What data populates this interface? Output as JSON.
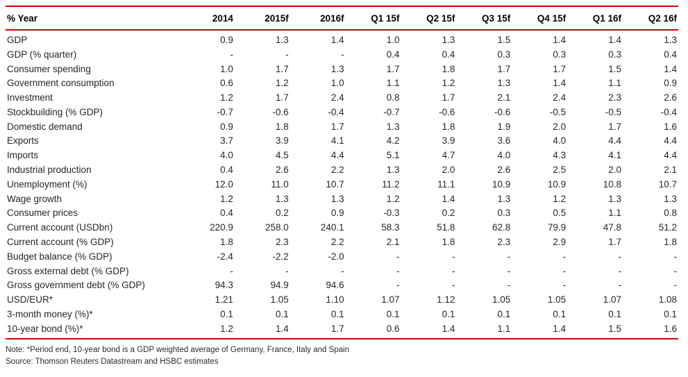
{
  "colors": {
    "rule_red": "#d40000"
  },
  "table": {
    "columns": [
      "% Year",
      "2014",
      "2015f",
      "2016f",
      "Q1 15f",
      "Q2 15f",
      "Q3 15f",
      "Q4 15f",
      "Q1 16f",
      "Q2 16f"
    ],
    "rows": [
      {
        "label": "GDP",
        "values": [
          "0.9",
          "1.3",
          "1.4",
          "1.0",
          "1.3",
          "1.5",
          "1.4",
          "1.4",
          "1.3"
        ]
      },
      {
        "label": "GDP (% quarter)",
        "values": [
          "-",
          "-",
          "-",
          "0.4",
          "0.4",
          "0.3",
          "0.3",
          "0.3",
          "0.4"
        ]
      },
      {
        "label": "Consumer spending",
        "values": [
          "1.0",
          "1.7",
          "1.3",
          "1.7",
          "1.8",
          "1.7",
          "1.7",
          "1.5",
          "1.4"
        ]
      },
      {
        "label": "Government consumption",
        "values": [
          "0.6",
          "1.2",
          "1.0",
          "1.1",
          "1.2",
          "1.3",
          "1.4",
          "1.1",
          "0.9"
        ]
      },
      {
        "label": "Investment",
        "values": [
          "1.2",
          "1.7",
          "2.4",
          "0.8",
          "1.7",
          "2.1",
          "2.4",
          "2.3",
          "2.6"
        ]
      },
      {
        "label": "Stockbuilding (% GDP)",
        "values": [
          "-0.7",
          "-0.6",
          "-0.4",
          "-0.7",
          "-0.6",
          "-0.6",
          "-0.5",
          "-0.5",
          "-0.4"
        ]
      },
      {
        "label": "Domestic demand",
        "values": [
          "0.9",
          "1.8",
          "1.7",
          "1.3",
          "1.8",
          "1.9",
          "2.0",
          "1.7",
          "1.6"
        ]
      },
      {
        "label": "Exports",
        "values": [
          "3.7",
          "3.9",
          "4.1",
          "4.2",
          "3.9",
          "3.6",
          "4.0",
          "4.4",
          "4.4"
        ]
      },
      {
        "label": "Imports",
        "values": [
          "4.0",
          "4.5",
          "4.4",
          "5.1",
          "4.7",
          "4.0",
          "4.3",
          "4.1",
          "4.4"
        ]
      },
      {
        "label": "Industrial production",
        "values": [
          "0.4",
          "2.6",
          "2.2",
          "1.3",
          "2.0",
          "2.6",
          "2.5",
          "2.0",
          "2.1"
        ]
      },
      {
        "label": "Unemployment (%)",
        "values": [
          "12.0",
          "11.0",
          "10.7",
          "11.2",
          "11.1",
          "10.9",
          "10.9",
          "10.8",
          "10.7"
        ]
      },
      {
        "label": "Wage growth",
        "values": [
          "1.2",
          "1.3",
          "1.3",
          "1.2",
          "1.4",
          "1.3",
          "1.2",
          "1.3",
          "1.3"
        ]
      },
      {
        "label": "Consumer prices",
        "values": [
          "0.4",
          "0.2",
          "0.9",
          "-0.3",
          "0.2",
          "0.3",
          "0.5",
          "1.1",
          "0.8"
        ]
      },
      {
        "label": "Current account (USDbn)",
        "values": [
          "220.9",
          "258.0",
          "240.1",
          "58.3",
          "51.8",
          "62.8",
          "79.9",
          "47.8",
          "51.2"
        ]
      },
      {
        "label": "Current account (% GDP)",
        "values": [
          "1.8",
          "2.3",
          "2.2",
          "2.1",
          "1.8",
          "2.3",
          "2.9",
          "1.7",
          "1.8"
        ]
      },
      {
        "label": "Budget balance (% GDP)",
        "values": [
          "-2.4",
          "-2.2",
          "-2.0",
          "-",
          "-",
          "-",
          "-",
          "-",
          "-"
        ]
      },
      {
        "label": "Gross external debt (% GDP)",
        "values": [
          "-",
          "-",
          "-",
          "-",
          "-",
          "-",
          "-",
          "-",
          "-"
        ]
      },
      {
        "label": "Gross government debt (% GDP)",
        "values": [
          "94.3",
          "94.9",
          "94.6",
          "-",
          "-",
          "-",
          "-",
          "-",
          "-"
        ]
      },
      {
        "label": "USD/EUR*",
        "values": [
          "1.21",
          "1.05",
          "1.10",
          "1.07",
          "1.12",
          "1.05",
          "1.05",
          "1.07",
          "1.08"
        ]
      },
      {
        "label": "3-month money (%)*",
        "values": [
          "0.1",
          "0.1",
          "0.1",
          "0.1",
          "0.1",
          "0.1",
          "0.1",
          "0.1",
          "0.1"
        ]
      },
      {
        "label": "10-year bond (%)*",
        "values": [
          "1.2",
          "1.4",
          "1.7",
          "0.6",
          "1.4",
          "1.1",
          "1.4",
          "1.5",
          "1.6"
        ]
      }
    ]
  },
  "footer": {
    "note": "Note: *Period end, 10-year bond is a GDP weighted average of Germany, France, Italy and Spain",
    "source": "Source: Thomson Reuters Datastream and HSBC estimates"
  }
}
